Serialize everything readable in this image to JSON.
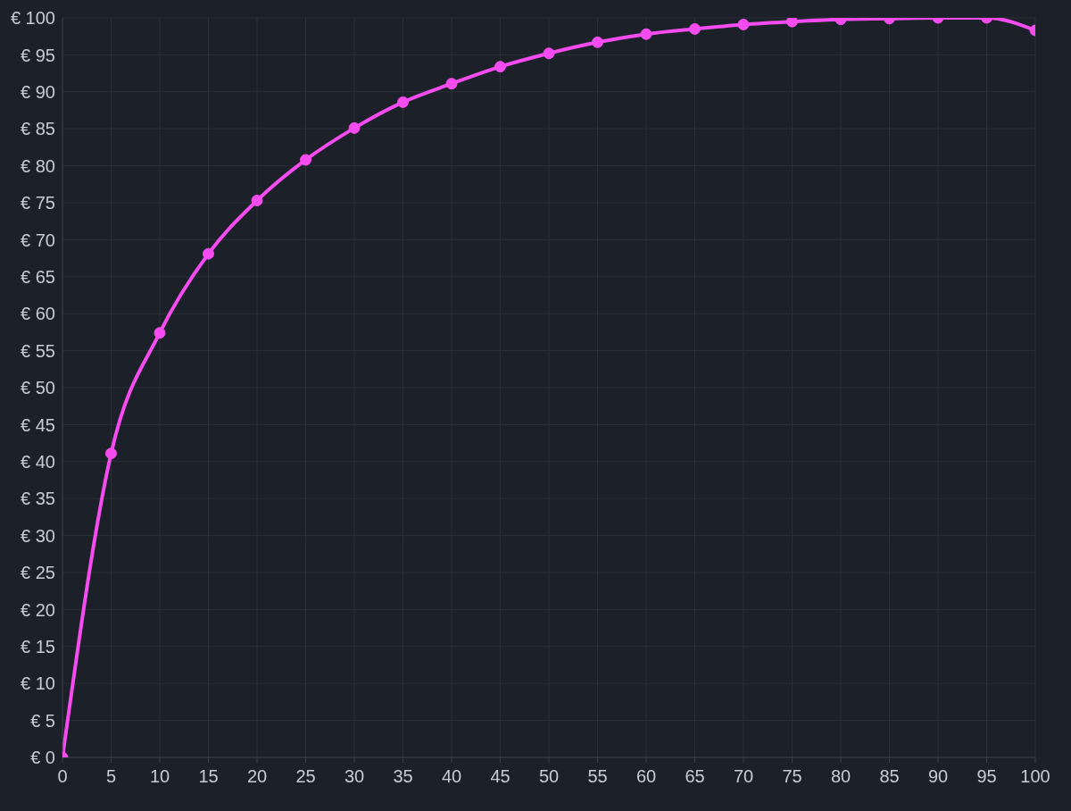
{
  "chart_data": {
    "type": "line",
    "x": [
      0,
      5,
      10,
      15,
      20,
      25,
      30,
      35,
      40,
      45,
      50,
      55,
      60,
      65,
      70,
      75,
      80,
      85,
      90,
      95,
      100
    ],
    "series": [
      {
        "color": "#f54cf0",
        "values": [
          0,
          41.1,
          57.4,
          68.1,
          75.3,
          80.8,
          85.1,
          88.6,
          91.1,
          93.4,
          95.2,
          96.7,
          97.8,
          98.5,
          99.1,
          99.5,
          99.8,
          99.9,
          100,
          100,
          98.3
        ]
      }
    ],
    "xlim": [
      0,
      100
    ],
    "xticks": [
      0,
      5,
      10,
      15,
      20,
      25,
      30,
      35,
      40,
      45,
      50,
      55,
      60,
      65,
      70,
      75,
      80,
      85,
      90,
      95,
      100
    ],
    "ylim": [
      0,
      100
    ],
    "yticks": [
      {
        "value": 0,
        "label": "€ 0"
      },
      {
        "value": 5,
        "label": "€ 5"
      },
      {
        "value": 10,
        "label": "€ 10"
      },
      {
        "value": 15,
        "label": "€ 15"
      },
      {
        "value": 20,
        "label": "€ 20"
      },
      {
        "value": 25,
        "label": "€ 25"
      },
      {
        "value": 30,
        "label": "€ 30"
      },
      {
        "value": 35,
        "label": "€ 35"
      },
      {
        "value": 40,
        "label": "€ 40"
      },
      {
        "value": 45,
        "label": "€ 45"
      },
      {
        "value": 50,
        "label": "€ 50"
      },
      {
        "value": 55,
        "label": "€ 55"
      },
      {
        "value": 60,
        "label": "€ 60"
      },
      {
        "value": 65,
        "label": "€ 65"
      },
      {
        "value": 70,
        "label": "€ 70"
      },
      {
        "value": 75,
        "label": "€ 75"
      },
      {
        "value": 80,
        "label": "€ 80"
      },
      {
        "value": 85,
        "label": "€ 85"
      },
      {
        "value": 90,
        "label": "€ 90"
      },
      {
        "value": 95,
        "label": "€ 95"
      },
      {
        "value": 100,
        "label": "€ 100"
      }
    ],
    "grid": true,
    "marker": "circle",
    "line_style": "solid"
  }
}
